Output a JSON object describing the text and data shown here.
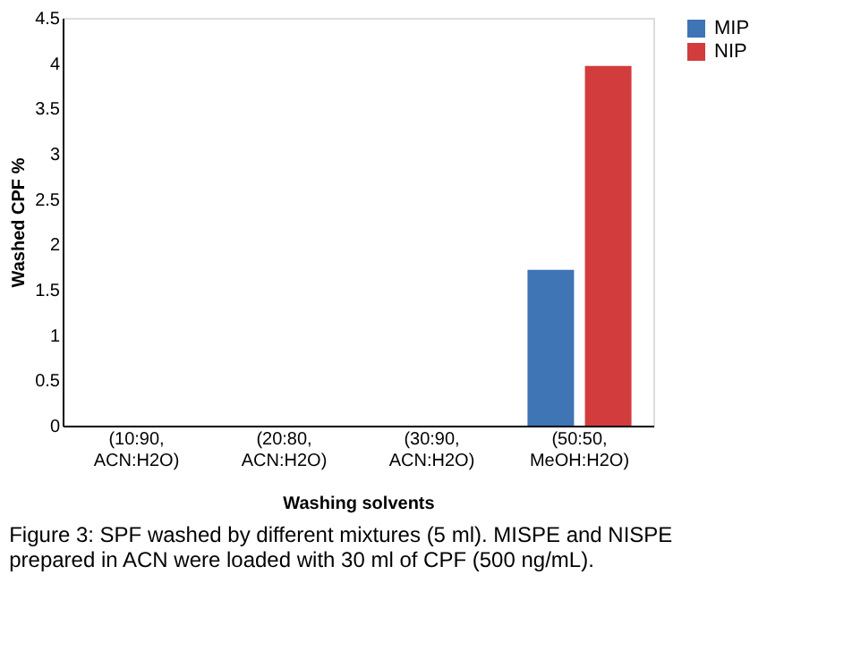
{
  "chart_data": {
    "type": "bar",
    "xlabel": "Washing solvents",
    "ylabel": "Washed CPF %",
    "categories": [
      "(10:90, ACN:H2O)",
      "(20:80, ACN:H2O)",
      "(30:90, ACN:H2O)",
      "(50:50, MeOH:H2O)"
    ],
    "series": [
      {
        "name": "MIP",
        "color": "#3f74b5",
        "values": [
          0,
          0,
          0,
          1.72
        ]
      },
      {
        "name": "NIP",
        "color": "#d23c3c",
        "values": [
          0,
          0,
          0,
          3.97
        ]
      }
    ],
    "ylim": [
      0,
      4.5
    ],
    "yticks": [
      0,
      0.5,
      1,
      1.5,
      2,
      2.5,
      3,
      3.5,
      4,
      4.5
    ],
    "grid": false,
    "legend": "right",
    "annotations": [
      "Figure 3: SPF washed by different mixtures (5 ml). MISPE and NISPE prepared in ACN were loaded with 30 ml of CPF (500 ng/mL)."
    ]
  }
}
